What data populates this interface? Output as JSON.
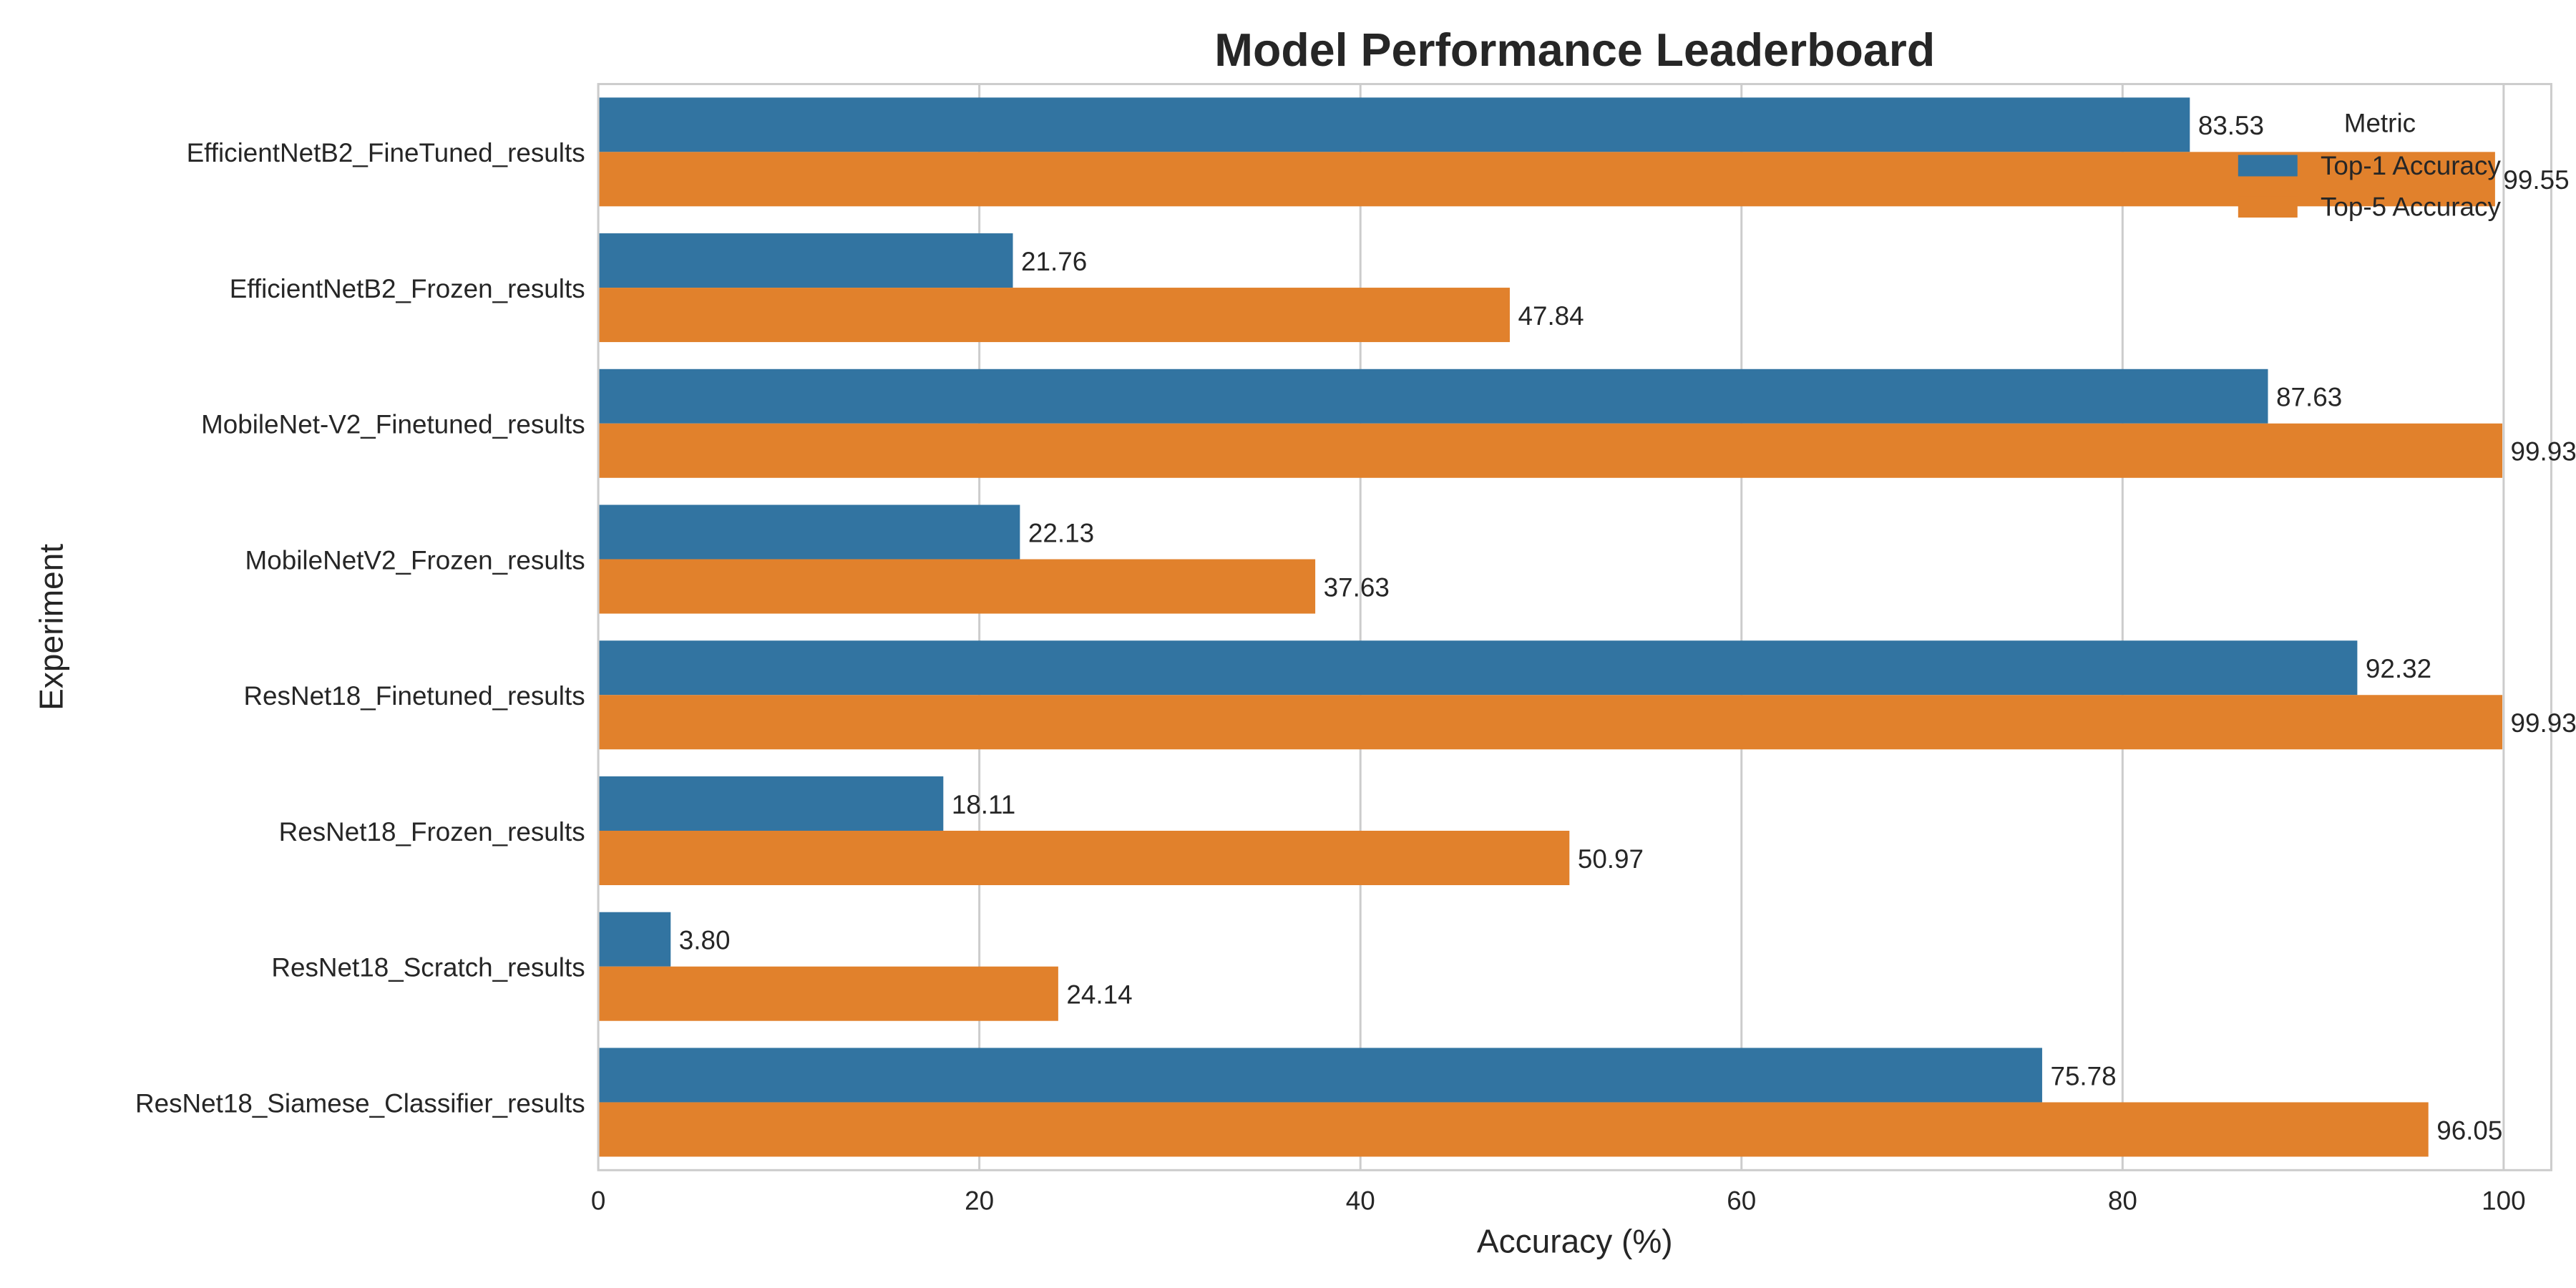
{
  "chart_data": {
    "type": "bar",
    "orientation": "horizontal",
    "title": "Model Performance Leaderboard",
    "xlabel": "Accuracy (%)",
    "ylabel": "Experiment",
    "xlim": [
      0,
      102.5
    ],
    "xticks": [
      0,
      20,
      40,
      60,
      80,
      100
    ],
    "grid": true,
    "legend": {
      "title": "Metric",
      "placement": "top-right"
    },
    "categories": [
      "EfficientNetB2_FineTuned_results",
      "EfficientNetB2_Frozen_results",
      "MobileNet-V2_Finetuned_results",
      "MobileNetV2_Frozen_results",
      "ResNet18_Finetuned_results",
      "ResNet18_Frozen_results",
      "ResNet18_Scratch_results",
      "ResNet18_Siamese_Classifier_results"
    ],
    "series": [
      {
        "name": "Top-1 Accuracy",
        "color": "#3274a1",
        "values": [
          83.53,
          21.76,
          87.63,
          22.13,
          92.32,
          18.11,
          3.8,
          75.78
        ],
        "labels": [
          "83.53",
          "21.76",
          "87.63",
          "22.13",
          "92.32",
          "18.11",
          "3.80",
          "75.78"
        ]
      },
      {
        "name": "Top-5 Accuracy",
        "color": "#e1812c",
        "values": [
          99.55,
          47.84,
          99.93,
          37.63,
          99.93,
          50.97,
          24.14,
          96.05
        ],
        "labels": [
          "99.55",
          "47.84",
          "99.93",
          "37.63",
          "99.93",
          "50.97",
          "24.14",
          "96.05"
        ]
      }
    ]
  }
}
